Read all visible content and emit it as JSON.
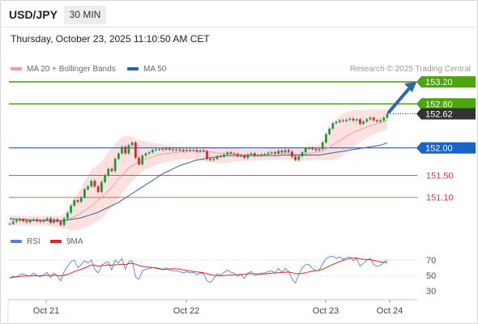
{
  "header": {
    "pair": "USD/JPY",
    "timeframe": "30 MIN",
    "datetime": "Thursday, October 23, 2025 11:10:50 AM CET"
  },
  "legend": {
    "ma20_label": "MA 20 + Bollinger Bands",
    "ma50_label": "MA 50",
    "rsi_label": "RSI",
    "ma9_label": "9MA"
  },
  "credit": "Research © 2025 Trading Central",
  "colors": {
    "resistance": "#4ca40e",
    "pivot": "#1a63c6",
    "support": "#d43a3a",
    "bollinger_fill": "#fde0e0",
    "ma20": "#f0a0a0",
    "ma50": "#3a5f9c",
    "candle_up": "#1e9a3c",
    "candle_down": "#d22a2a",
    "arrow": "#2f66b3",
    "rsi": "#5a80d0",
    "rsi_ma": "#d22a2a"
  },
  "chart_data": [
    {
      "type": "candlestick",
      "x_ticks": [
        "Oct 21",
        "Oct 22",
        "Oct 23",
        "Oct 24"
      ],
      "ylim": [
        150.5,
        153.4
      ],
      "levels": [
        {
          "kind": "resistance",
          "value": 153.2,
          "label": "153.20"
        },
        {
          "kind": "resistance",
          "value": 152.8,
          "label": "152.80"
        },
        {
          "kind": "last",
          "value": 152.62,
          "label": "152.62"
        },
        {
          "kind": "pivot",
          "value": 152.0,
          "label": "152.00"
        },
        {
          "kind": "support",
          "value": 151.5,
          "label": "151.50"
        },
        {
          "kind": "support",
          "value": 151.1,
          "label": "151.10"
        }
      ],
      "price": [
        150.62,
        150.66,
        150.68,
        150.7,
        150.67,
        150.65,
        150.68,
        150.7,
        150.67,
        150.66,
        150.69,
        150.72,
        150.64,
        150.7,
        150.66,
        150.6,
        150.72,
        150.82,
        150.95,
        151.05,
        151.02,
        151.1,
        151.25,
        151.3,
        151.4,
        151.3,
        151.2,
        151.38,
        151.5,
        151.62,
        151.58,
        151.8,
        151.9,
        152.02,
        151.9,
        152.05,
        152.1,
        151.82,
        151.7,
        151.86,
        151.9,
        151.92,
        151.96,
        151.97,
        151.98,
        151.97,
        151.99,
        151.97,
        151.96,
        151.97,
        151.96,
        151.94,
        151.96,
        151.95,
        151.96,
        151.93,
        151.95,
        151.94,
        151.8,
        151.78,
        151.8,
        151.85,
        151.84,
        151.88,
        151.92,
        151.9,
        151.89,
        151.85,
        151.86,
        151.82,
        151.88,
        151.9,
        151.86,
        151.87,
        151.88,
        151.89,
        151.91,
        151.92,
        151.9,
        151.95,
        151.92,
        151.96,
        151.93,
        151.84,
        151.78,
        151.85,
        151.92,
        151.99,
        152.0,
        151.98,
        151.96,
        151.98,
        152.1,
        152.25,
        152.35,
        152.45,
        152.47,
        152.5,
        152.49,
        152.51,
        152.53,
        152.5,
        152.52,
        152.44,
        152.48,
        152.52,
        152.55,
        152.5,
        152.48,
        152.5,
        152.55,
        152.62
      ],
      "ma20": [
        150.7,
        150.69,
        150.69,
        150.69,
        150.68,
        150.68,
        150.68,
        150.68,
        150.68,
        150.68,
        150.68,
        150.68,
        150.67,
        150.67,
        150.67,
        150.66,
        150.67,
        150.69,
        150.72,
        150.75,
        150.78,
        150.82,
        150.86,
        150.9,
        150.95,
        151.0,
        151.05,
        151.1,
        151.16,
        151.22,
        151.28,
        151.36,
        151.43,
        151.5,
        151.56,
        151.63,
        151.68,
        151.71,
        151.74,
        151.77,
        151.8,
        151.82,
        151.84,
        151.86,
        151.88,
        151.89,
        151.9,
        151.9,
        151.91,
        151.92,
        151.93,
        151.94,
        151.95,
        151.95,
        151.95,
        151.95,
        151.95,
        151.95,
        151.94,
        151.93,
        151.92,
        151.91,
        151.9,
        151.9,
        151.9,
        151.89,
        151.89,
        151.88,
        151.88,
        151.87,
        151.87,
        151.87,
        151.87,
        151.87,
        151.87,
        151.88,
        151.88,
        151.89,
        151.89,
        151.9,
        151.9,
        151.9,
        151.9,
        151.89,
        151.88,
        151.88,
        151.88,
        151.89,
        151.9,
        151.91,
        151.92,
        151.93,
        151.95,
        151.98,
        152.01,
        152.05,
        152.09,
        152.13,
        152.17,
        152.21,
        152.25,
        152.28,
        152.31,
        152.33,
        152.35,
        152.38,
        152.4,
        152.42,
        152.44,
        152.46,
        152.48,
        152.5
      ],
      "ma50": [
        150.72,
        150.71,
        150.71,
        150.7,
        150.7,
        150.7,
        150.69,
        150.69,
        150.69,
        150.69,
        150.68,
        150.68,
        150.68,
        150.68,
        150.68,
        150.68,
        150.68,
        150.69,
        150.7,
        150.71,
        150.72,
        150.73,
        150.75,
        150.77,
        150.79,
        150.81,
        150.83,
        150.86,
        150.89,
        150.92,
        150.95,
        150.98,
        151.01,
        151.05,
        151.09,
        151.13,
        151.17,
        151.21,
        151.25,
        151.29,
        151.33,
        151.37,
        151.41,
        151.45,
        151.49,
        151.53,
        151.56,
        151.59,
        151.62,
        151.65,
        151.68,
        151.7,
        151.72,
        151.74,
        151.76,
        151.78,
        151.79,
        151.8,
        151.81,
        151.82,
        151.83,
        151.84,
        151.85,
        151.85,
        151.86,
        151.86,
        151.86,
        151.86,
        151.86,
        151.86,
        151.86,
        151.86,
        151.86,
        151.86,
        151.86,
        151.86,
        151.86,
        151.86,
        151.86,
        151.86,
        151.87,
        151.87,
        151.87,
        151.87,
        151.87,
        151.87,
        151.87,
        151.87,
        151.87,
        151.87,
        151.87,
        151.87,
        151.88,
        151.89,
        151.9,
        151.91,
        151.92,
        151.93,
        151.94,
        151.95,
        151.96,
        151.97,
        151.98,
        151.99,
        152.0,
        152.01,
        152.02,
        152.03,
        152.04,
        152.05,
        152.07,
        152.09
      ],
      "bollinger_upper": [
        150.78,
        150.77,
        150.77,
        150.77,
        150.76,
        150.76,
        150.76,
        150.76,
        150.76,
        150.76,
        150.77,
        150.77,
        150.76,
        150.76,
        150.76,
        150.76,
        150.8,
        150.88,
        150.98,
        151.1,
        151.18,
        151.28,
        151.4,
        151.5,
        151.6,
        151.66,
        151.7,
        151.76,
        151.84,
        151.92,
        152.0,
        152.08,
        152.14,
        152.2,
        152.22,
        152.22,
        152.2,
        152.17,
        152.15,
        152.13,
        152.12,
        152.11,
        152.1,
        152.09,
        152.08,
        152.06,
        152.05,
        152.04,
        152.03,
        152.02,
        152.02,
        152.02,
        152.02,
        152.02,
        152.02,
        152.02,
        152.02,
        152.02,
        152.02,
        152.02,
        152.01,
        152.01,
        152.0,
        152.0,
        152.0,
        151.99,
        151.99,
        151.99,
        151.99,
        151.98,
        151.98,
        151.98,
        151.98,
        151.98,
        151.98,
        151.99,
        151.99,
        151.99,
        151.99,
        152.0,
        152.0,
        152.0,
        152.0,
        152.0,
        152.0,
        152.0,
        152.0,
        152.01,
        152.02,
        152.03,
        152.04,
        152.06,
        152.12,
        152.22,
        152.33,
        152.43,
        152.52,
        152.58,
        152.62,
        152.65,
        152.67,
        152.68,
        152.69,
        152.69,
        152.69,
        152.7,
        152.7,
        152.7,
        152.7,
        152.7,
        152.7,
        152.71
      ],
      "bollinger_lower": [
        150.6,
        150.6,
        150.6,
        150.6,
        150.6,
        150.59,
        150.59,
        150.59,
        150.59,
        150.59,
        150.59,
        150.59,
        150.58,
        150.57,
        150.56,
        150.55,
        150.53,
        150.51,
        150.5,
        150.5,
        150.51,
        150.53,
        150.55,
        150.57,
        150.6,
        150.64,
        150.68,
        150.72,
        150.78,
        150.85,
        150.92,
        151.0,
        151.08,
        151.16,
        151.24,
        151.32,
        151.4,
        151.46,
        151.52,
        151.57,
        151.61,
        151.64,
        151.67,
        151.69,
        151.71,
        151.72,
        151.74,
        151.75,
        151.76,
        151.78,
        151.79,
        151.8,
        151.8,
        151.8,
        151.79,
        151.78,
        151.77,
        151.76,
        151.75,
        151.74,
        151.73,
        151.72,
        151.72,
        151.72,
        151.73,
        151.74,
        151.75,
        151.76,
        151.76,
        151.76,
        151.76,
        151.77,
        151.77,
        151.77,
        151.77,
        151.78,
        151.78,
        151.78,
        151.78,
        151.78,
        151.79,
        151.79,
        151.79,
        151.78,
        151.77,
        151.77,
        151.77,
        151.77,
        151.77,
        151.78,
        151.78,
        151.78,
        151.78,
        151.78,
        151.78,
        151.78,
        151.79,
        151.82,
        151.86,
        151.91,
        151.96,
        152.01,
        152.06,
        152.1,
        152.14,
        152.18,
        152.21,
        152.24,
        152.27,
        152.3,
        152.32,
        152.34
      ],
      "projection": {
        "from": 152.62,
        "to": 153.2
      }
    },
    {
      "type": "line",
      "series_labels": [
        "RSI",
        "9MA"
      ],
      "ylim": [
        20,
        80
      ],
      "y_ticks": [
        70,
        50,
        30
      ],
      "rsi": [
        46,
        49,
        48,
        51,
        52,
        50,
        49,
        53,
        50,
        48,
        51,
        54,
        47,
        53,
        49,
        43,
        55,
        62,
        68,
        70,
        60,
        64,
        69,
        66,
        70,
        58,
        53,
        63,
        66,
        68,
        57,
        70,
        66,
        72,
        58,
        68,
        69,
        48,
        45,
        56,
        58,
        59,
        60,
        60,
        59,
        58,
        60,
        57,
        56,
        56,
        55,
        53,
        55,
        53,
        54,
        51,
        53,
        52,
        43,
        41,
        46,
        52,
        50,
        54,
        57,
        54,
        53,
        49,
        51,
        46,
        53,
        55,
        50,
        51,
        53,
        53,
        55,
        56,
        53,
        59,
        54,
        59,
        55,
        45,
        40,
        51,
        60,
        64,
        64,
        59,
        56,
        57,
        65,
        72,
        74,
        75,
        72,
        74,
        71,
        73,
        74,
        69,
        72,
        62,
        66,
        70,
        72,
        64,
        62,
        63,
        67,
        70
      ],
      "ma9": [
        47,
        47.5,
        48,
        48.5,
        49,
        49.2,
        49.3,
        49.6,
        49.7,
        49.6,
        49.8,
        50.2,
        49.9,
        50.1,
        50.0,
        49.4,
        50.0,
        51.2,
        53.0,
        55.0,
        56.5,
        57.8,
        59.6,
        61.4,
        63.5,
        63.3,
        62.0,
        62.6,
        63.1,
        63.8,
        63.0,
        63.8,
        64.0,
        64.6,
        64.1,
        65.3,
        65.5,
        64.6,
        62.7,
        61.9,
        61.0,
        60.8,
        60.0,
        59.5,
        58.5,
        57.5,
        57.9,
        58.4,
        58.6,
        58.5,
        58.2,
        57.2,
        56.6,
        55.8,
        55.2,
        54.4,
        54.1,
        53.5,
        52.2,
        50.9,
        50.0,
        49.8,
        49.6,
        49.7,
        50.1,
        50.5,
        50.8,
        50.9,
        51.2,
        51.4,
        52.1,
        52.4,
        52.1,
        51.9,
        51.7,
        51.9,
        52.3,
        52.8,
        53.0,
        53.5,
        53.7,
        54.2,
        54.3,
        53.5,
        52.4,
        52.1,
        52.6,
        53.5,
        54.5,
        55.5,
        56.1,
        56.6,
        58.0,
        60.1,
        62.2,
        64.2,
        66.1,
        67.9,
        69.5,
        70.8,
        72.0,
        72.5,
        72.6,
        71.6,
        71.0,
        70.6,
        70.4,
        69.4,
        68.6,
        67.4,
        66.9,
        66.5
      ]
    }
  ]
}
